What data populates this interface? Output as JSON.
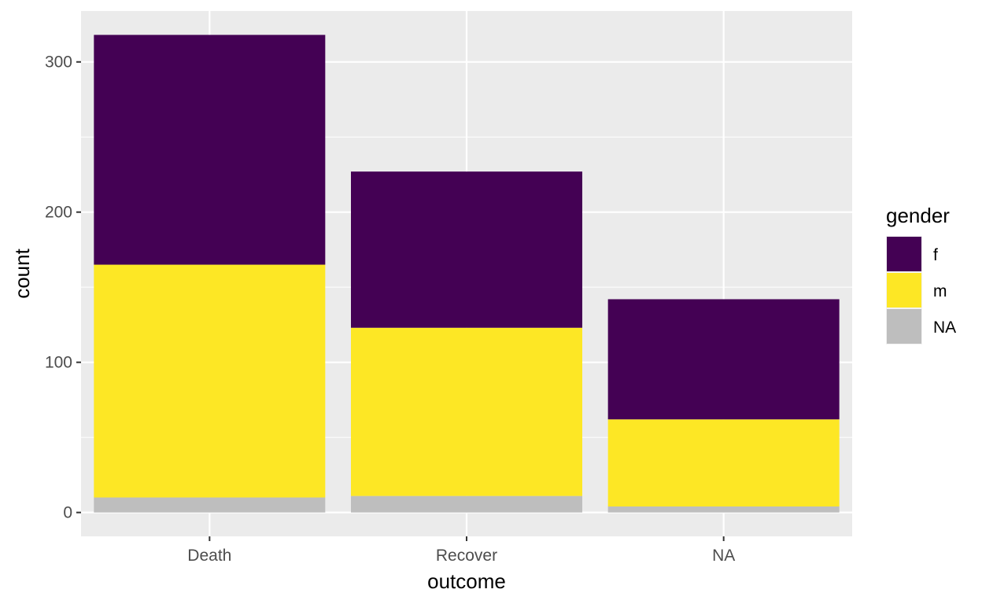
{
  "chart_data": {
    "type": "bar",
    "stacked": true,
    "categories": [
      "Death",
      "Recover",
      "NA"
    ],
    "series": [
      {
        "name": "NA",
        "values": [
          10,
          11,
          4
        ],
        "color": "#BEBEBE"
      },
      {
        "name": "m",
        "values": [
          155,
          112,
          58
        ],
        "color": "#FDE725"
      },
      {
        "name": "f",
        "values": [
          153,
          104,
          80
        ],
        "color": "#440154"
      }
    ],
    "totals": [
      318,
      227,
      142
    ],
    "xlabel": "outcome",
    "ylabel": "count",
    "ylim": [
      -15.9,
      333.9
    ],
    "yticks": [
      0,
      100,
      200,
      300
    ],
    "grid": true,
    "panel_background": "#EBEBEB",
    "grid_color": "#FFFFFF",
    "legend": {
      "title": "gender",
      "position": "right",
      "items": [
        {
          "label": "f",
          "color": "#440154"
        },
        {
          "label": "m",
          "color": "#FDE725"
        },
        {
          "label": "NA",
          "color": "#BEBEBE"
        }
      ]
    }
  }
}
